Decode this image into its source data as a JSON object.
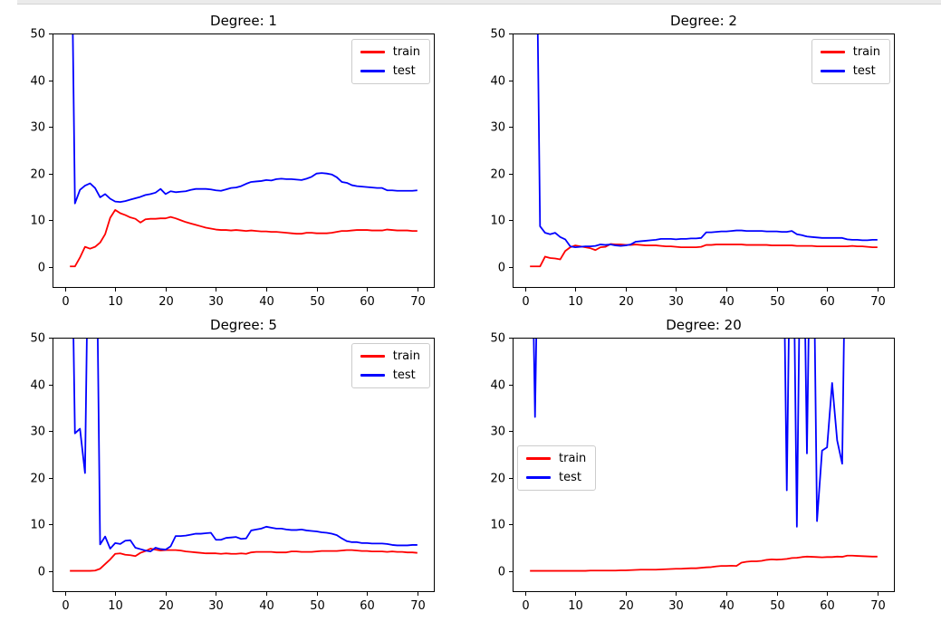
{
  "colors": {
    "train": "#ff0000",
    "test": "#0000ff",
    "frame": "#000000",
    "legend_border": "#cccccc",
    "scrollbar_strip": "#ebebeb"
  },
  "axes_config": {
    "xlim": [
      -2.45,
      73.45
    ],
    "ylim": [
      -4.5,
      50
    ],
    "x_ticks": [
      0,
      10,
      20,
      30,
      40,
      50,
      60,
      70
    ],
    "y_ticks": [
      0,
      10,
      20,
      30,
      40,
      50
    ],
    "clip_note": "values of 100 represent curve segments clipped above the y-axis top (50)"
  },
  "chart_data": [
    {
      "type": "line",
      "title": "Degree: 1",
      "x_range": [
        1,
        70
      ],
      "legend_position": "upper right",
      "series": [
        {
          "name": "train",
          "color_key": "train",
          "values": [
            0.1,
            0.1,
            2.0,
            4.3,
            3.9,
            4.3,
            5.2,
            7.0,
            10.5,
            12.2,
            11.5,
            11.1,
            10.6,
            10.3,
            9.5,
            10.2,
            10.3,
            10.3,
            10.4,
            10.4,
            10.7,
            10.4,
            10.0,
            9.6,
            9.3,
            9.0,
            8.7,
            8.4,
            8.2,
            8.0,
            7.9,
            7.9,
            7.8,
            7.9,
            7.8,
            7.7,
            7.8,
            7.7,
            7.6,
            7.6,
            7.5,
            7.5,
            7.4,
            7.3,
            7.2,
            7.1,
            7.1,
            7.3,
            7.3,
            7.2,
            7.2,
            7.2,
            7.3,
            7.5,
            7.7,
            7.7,
            7.8,
            7.9,
            7.9,
            7.9,
            7.8,
            7.8,
            7.8,
            8.0,
            7.9,
            7.8,
            7.8,
            7.8,
            7.7,
            7.7
          ]
        },
        {
          "name": "test",
          "color_key": "test",
          "values": [
            100,
            13.6,
            16.5,
            17.4,
            17.9,
            16.9,
            14.9,
            15.6,
            14.6,
            14.0,
            13.9,
            14.1,
            14.4,
            14.7,
            15.0,
            15.4,
            15.6,
            15.9,
            16.7,
            15.6,
            16.2,
            16.0,
            16.1,
            16.2,
            16.5,
            16.7,
            16.7,
            16.7,
            16.6,
            16.4,
            16.3,
            16.6,
            16.9,
            17.0,
            17.3,
            17.8,
            18.2,
            18.3,
            18.4,
            18.6,
            18.5,
            18.8,
            18.9,
            18.8,
            18.8,
            18.7,
            18.6,
            18.9,
            19.3,
            20.0,
            20.1,
            20.0,
            19.8,
            19.2,
            18.2,
            18.0,
            17.5,
            17.3,
            17.2,
            17.1,
            17.0,
            16.9,
            16.9,
            16.4,
            16.4,
            16.3,
            16.3,
            16.3,
            16.3,
            16.4
          ]
        }
      ]
    },
    {
      "type": "line",
      "title": "Degree: 2",
      "x_range": [
        1,
        70
      ],
      "legend_position": "upper right",
      "series": [
        {
          "name": "train",
          "color_key": "train",
          "values": [
            0.1,
            0.1,
            0.1,
            2.2,
            1.9,
            1.8,
            1.6,
            3.4,
            4.2,
            4.6,
            4.4,
            4.2,
            4.0,
            3.6,
            4.2,
            4.3,
            4.9,
            4.8,
            4.8,
            4.7,
            4.7,
            4.8,
            4.7,
            4.6,
            4.6,
            4.6,
            4.5,
            4.4,
            4.4,
            4.3,
            4.2,
            4.2,
            4.2,
            4.2,
            4.3,
            4.7,
            4.7,
            4.8,
            4.8,
            4.8,
            4.8,
            4.8,
            4.8,
            4.7,
            4.7,
            4.7,
            4.7,
            4.7,
            4.6,
            4.6,
            4.6,
            4.6,
            4.6,
            4.5,
            4.5,
            4.5,
            4.5,
            4.4,
            4.4,
            4.4,
            4.4,
            4.4,
            4.4,
            4.4,
            4.5,
            4.4,
            4.4,
            4.3,
            4.2,
            4.2
          ]
        },
        {
          "name": "test",
          "color_key": "test",
          "values": [
            100,
            100,
            8.7,
            7.3,
            7.0,
            7.3,
            6.4,
            5.9,
            4.4,
            4.2,
            4.3,
            4.4,
            4.4,
            4.5,
            4.8,
            4.7,
            4.8,
            4.6,
            4.5,
            4.6,
            4.8,
            5.4,
            5.5,
            5.6,
            5.7,
            5.8,
            6.0,
            6.0,
            6.0,
            5.9,
            6.0,
            6.0,
            6.1,
            6.1,
            6.2,
            7.4,
            7.4,
            7.5,
            7.6,
            7.6,
            7.7,
            7.8,
            7.8,
            7.7,
            7.7,
            7.7,
            7.7,
            7.6,
            7.6,
            7.6,
            7.5,
            7.5,
            7.7,
            7.0,
            6.8,
            6.5,
            6.4,
            6.3,
            6.2,
            6.2,
            6.2,
            6.2,
            6.2,
            5.9,
            5.8,
            5.8,
            5.7,
            5.7,
            5.8,
            5.8
          ]
        }
      ]
    },
    {
      "type": "line",
      "title": "Degree: 5",
      "x_range": [
        1,
        70
      ],
      "legend_position": "upper right",
      "series": [
        {
          "name": "train",
          "color_key": "train",
          "values": [
            0.05,
            0.05,
            0.05,
            0.05,
            0.05,
            0.1,
            0.5,
            1.5,
            2.5,
            3.7,
            3.8,
            3.5,
            3.4,
            3.2,
            3.9,
            4.3,
            4.8,
            4.6,
            4.4,
            4.5,
            4.5,
            4.5,
            4.4,
            4.2,
            4.1,
            4.0,
            3.9,
            3.8,
            3.8,
            3.8,
            3.7,
            3.8,
            3.7,
            3.7,
            3.8,
            3.7,
            4.0,
            4.1,
            4.1,
            4.1,
            4.1,
            4.0,
            4.0,
            4.0,
            4.2,
            4.2,
            4.1,
            4.1,
            4.1,
            4.2,
            4.3,
            4.3,
            4.3,
            4.3,
            4.4,
            4.5,
            4.5,
            4.4,
            4.3,
            4.3,
            4.2,
            4.2,
            4.2,
            4.1,
            4.2,
            4.1,
            4.1,
            4.0,
            4.0,
            3.9
          ]
        },
        {
          "name": "test",
          "color_key": "test",
          "values": [
            100,
            29.5,
            30.5,
            21.0,
            100,
            100,
            5.7,
            7.4,
            4.8,
            6.0,
            5.8,
            6.5,
            6.6,
            5.0,
            4.7,
            4.4,
            4.2,
            5.0,
            4.7,
            4.6,
            5.3,
            7.5,
            7.5,
            7.6,
            7.8,
            8.0,
            8.0,
            8.1,
            8.2,
            6.7,
            6.7,
            7.1,
            7.2,
            7.3,
            6.9,
            7.0,
            8.7,
            8.9,
            9.1,
            9.5,
            9.3,
            9.1,
            9.1,
            8.9,
            8.8,
            8.8,
            8.9,
            8.7,
            8.6,
            8.5,
            8.3,
            8.2,
            8.0,
            7.7,
            7.0,
            6.4,
            6.2,
            6.2,
            6.0,
            6.0,
            5.9,
            5.9,
            5.9,
            5.8,
            5.6,
            5.5,
            5.5,
            5.5,
            5.6,
            5.6
          ]
        }
      ]
    },
    {
      "type": "line",
      "title": "Degree: 20",
      "x_range": [
        1,
        70
      ],
      "legend_position": "center left",
      "series": [
        {
          "name": "train",
          "color_key": "train",
          "values": [
            0.05,
            0.05,
            0.05,
            0.05,
            0.05,
            0.05,
            0.05,
            0.05,
            0.05,
            0.05,
            0.05,
            0.05,
            0.1,
            0.1,
            0.1,
            0.1,
            0.1,
            0.1,
            0.15,
            0.15,
            0.2,
            0.25,
            0.3,
            0.3,
            0.3,
            0.3,
            0.35,
            0.4,
            0.45,
            0.5,
            0.5,
            0.55,
            0.6,
            0.6,
            0.7,
            0.8,
            0.85,
            1.0,
            1.1,
            1.1,
            1.15,
            1.1,
            1.8,
            2.0,
            2.1,
            2.1,
            2.2,
            2.4,
            2.5,
            2.45,
            2.5,
            2.6,
            2.8,
            2.85,
            3.0,
            3.1,
            3.05,
            3.0,
            2.95,
            3.0,
            3.0,
            3.1,
            3.05,
            3.3,
            3.3,
            3.25,
            3.2,
            3.15,
            3.1,
            3.1
          ]
        },
        {
          "name": "test",
          "color_key": "test",
          "values": [
            100,
            33.0,
            100,
            100,
            100,
            100,
            100,
            100,
            100,
            100,
            100,
            100,
            100,
            100,
            100,
            100,
            100,
            100,
            100,
            100,
            100,
            100,
            100,
            100,
            100,
            100,
            100,
            100,
            100,
            100,
            100,
            100,
            100,
            100,
            100,
            100,
            100,
            100,
            100,
            100,
            100,
            100,
            100,
            100,
            100,
            100,
            100,
            100,
            100,
            100,
            100,
            17.3,
            100,
            9.5,
            100,
            25.2,
            100,
            10.7,
            25.8,
            26.5,
            40.3,
            28.0,
            23.0,
            100,
            100,
            100,
            100,
            100,
            100,
            100
          ]
        }
      ]
    }
  ]
}
